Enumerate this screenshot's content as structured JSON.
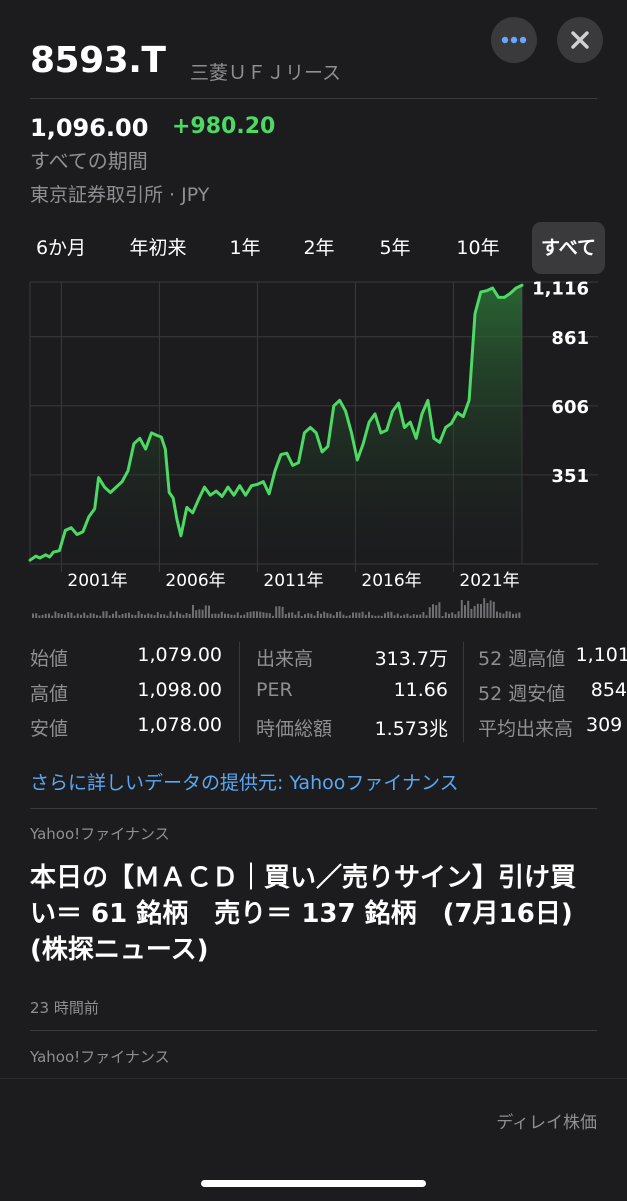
{
  "header": {
    "ticker": "8593.T",
    "company": "三菱ＵＦＪリース",
    "more_icon": "ellipsis-icon",
    "close_icon": "close-icon"
  },
  "quote": {
    "price": "1,096.00",
    "change": "+980.20",
    "period": "すべての期間",
    "exchange": "東京証券取引所 · JPY"
  },
  "ranges": [
    "6か月",
    "年初来",
    "1年",
    "2年",
    "5年",
    "10年",
    "すべて"
  ],
  "active_range": "すべて",
  "chart_data": {
    "type": "area",
    "ylabel_values": [
      "1,116",
      "861",
      "606",
      "351"
    ],
    "x_tick_labels": [
      "2001年",
      "2006年",
      "2011年",
      "2016年",
      "2021年"
    ],
    "ylim": [
      96,
      1137
    ],
    "x_range": [
      1999.5,
      2024.6
    ],
    "y_ticks": [
      1116,
      861,
      606,
      351
    ],
    "x_ticks": [
      2001,
      2006,
      2011,
      2016,
      2021
    ],
    "line_color": "#4cd964",
    "x": [
      1999.5,
      1999.8,
      2000.0,
      2000.3,
      2000.5,
      2000.7,
      2001.0,
      2001.3,
      2001.6,
      2001.9,
      2002.2,
      2002.5,
      2002.8,
      2003.0,
      2003.3,
      2003.6,
      2003.9,
      2004.2,
      2004.5,
      2004.8,
      2005.1,
      2005.4,
      2005.7,
      2006.0,
      2006.2,
      2006.4,
      2006.6,
      2006.8,
      2007.0,
      2007.2,
      2007.5,
      2007.8,
      2008.1,
      2008.4,
      2008.7,
      2009.0,
      2009.3,
      2009.6,
      2009.9,
      2010.2,
      2010.5,
      2010.8,
      2011.1,
      2011.4,
      2011.7,
      2012.0,
      2012.3,
      2012.6,
      2012.9,
      2013.2,
      2013.5,
      2013.8,
      2014.1,
      2014.4,
      2014.7,
      2015.0,
      2015.3,
      2015.6,
      2015.9,
      2016.2,
      2016.5,
      2016.8,
      2017.1,
      2017.4,
      2017.7,
      2018.0,
      2018.3,
      2018.6,
      2018.9,
      2019.2,
      2019.5,
      2019.8,
      2020.1,
      2020.4,
      2020.7,
      2021.0,
      2021.3,
      2021.6,
      2021.9,
      2022.2,
      2022.5,
      2022.8,
      2023.1,
      2023.4,
      2023.7,
      2024.0,
      2024.3,
      2024.6
    ],
    "y": [
      110,
      125,
      118,
      130,
      122,
      140,
      145,
      220,
      230,
      205,
      215,
      270,
      300,
      415,
      380,
      360,
      380,
      400,
      440,
      540,
      560,
      520,
      580,
      570,
      565,
      520,
      360,
      340,
      260,
      200,
      305,
      285,
      335,
      380,
      350,
      365,
      345,
      380,
      350,
      385,
      350,
      385,
      390,
      400,
      355,
      440,
      500,
      505,
      460,
      470,
      580,
      600,
      580,
      510,
      530,
      680,
      700,
      660,
      580,
      480,
      540,
      620,
      650,
      580,
      590,
      660,
      690,
      600,
      620,
      560,
      650,
      700,
      560,
      545,
      600,
      615,
      655,
      640,
      700,
      1020,
      1100,
      1105,
      1115,
      1080,
      1080,
      1095,
      1115,
      1125
    ]
  },
  "stats": [
    [
      {
        "label": "始値",
        "value": "1,079.00"
      },
      {
        "label": "高値",
        "value": "1,098.00"
      },
      {
        "label": "安値",
        "value": "1,078.00"
      }
    ],
    [
      {
        "label": "出来高",
        "value": "313.7万"
      },
      {
        "label": "PER",
        "value": "11.66"
      },
      {
        "label": "時価総額",
        "value": "1.573兆"
      }
    ],
    [
      {
        "label": "52 週高値",
        "value": "1,101"
      },
      {
        "label": "52 週安値",
        "value": "854"
      },
      {
        "label": "平均出来高",
        "value": "309"
      }
    ]
  ],
  "source_link": "さらに詳しいデータの提供元: Yahooファイナンス",
  "news": [
    {
      "source": "Yahoo!ファイナンス",
      "title": "本日の【ＭＡＣＤ｜買い／売りサイン】引け買い＝ 61 銘柄　売り＝ 137 銘柄　(7月16日)(株探ニュース)",
      "time": "23 時間前"
    },
    {
      "source": "Yahoo!ファイナンス"
    }
  ],
  "footer": {
    "delay": "ディレイ株価"
  }
}
